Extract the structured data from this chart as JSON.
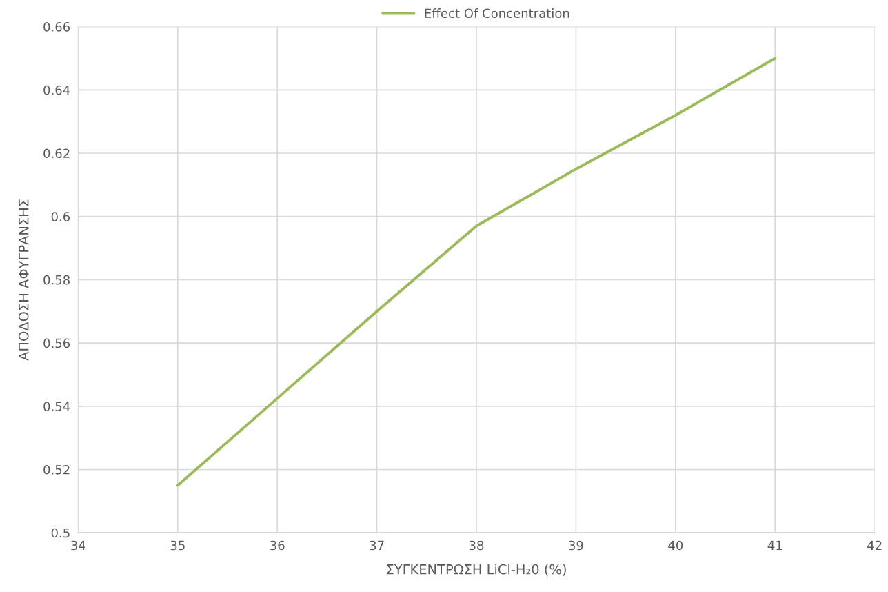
{
  "chart_data": {
    "type": "line",
    "xlabel": "ΣΥΓΚΕΝΤΡΩΣΗ LiCl-H₂0 (%)",
    "ylabel": "ΑΠΟΔΟΣΗ ΑΦΥΓΡΑΝΣΗΣ",
    "x": [
      35,
      36,
      37,
      38,
      39,
      40,
      41
    ],
    "series": [
      {
        "name": "Effect Of Concentration",
        "color": "#9bbb59",
        "values": [
          0.515,
          0.5425,
          0.57,
          0.597,
          0.615,
          0.632,
          0.65
        ]
      }
    ],
    "xlim": [
      34,
      42
    ],
    "xticks": [
      34,
      35,
      36,
      37,
      38,
      39,
      40,
      41,
      42
    ],
    "ylim": [
      0.5,
      0.66
    ],
    "yticks": [
      0.5,
      0.52,
      0.54,
      0.56,
      0.58,
      0.6,
      0.62,
      0.64,
      0.66
    ],
    "grid": true,
    "legend": "top",
    "marker": "none",
    "line_style": "solid"
  }
}
